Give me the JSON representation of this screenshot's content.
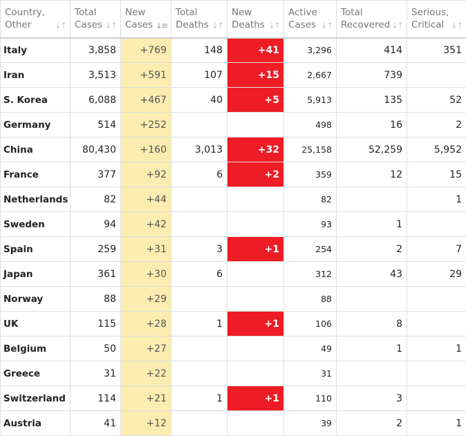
{
  "headers": [
    {
      "label": "Country,\nOther",
      "sort_icon": "sort-icon"
    },
    {
      "label": "Total\nCases",
      "sort_icon": "sort-icon"
    },
    {
      "label": "New\nCases",
      "sort_icon": "sort-descending-icon"
    },
    {
      "label": "Total\nDeaths",
      "sort_icon": "sort-icon"
    },
    {
      "label": "New\nDeaths",
      "sort_icon": "sort-icon"
    },
    {
      "label": "Active\nCases",
      "sort_icon": "sort-icon"
    },
    {
      "label": "Total\nRecovered",
      "sort_icon": "sort-icon"
    },
    {
      "label": "Serious,\nCritical",
      "sort_icon": "sort-icon"
    }
  ],
  "rows": [
    {
      "country": "Italy",
      "total_cases": "3,858",
      "new_cases": "+769",
      "total_deaths": "148",
      "new_deaths": "+41",
      "active_cases": "3,296",
      "total_recovered": "414",
      "serious_critical": "351"
    },
    {
      "country": "Iran",
      "total_cases": "3,513",
      "new_cases": "+591",
      "total_deaths": "107",
      "new_deaths": "+15",
      "active_cases": "2,667",
      "total_recovered": "739",
      "serious_critical": ""
    },
    {
      "country": "S. Korea",
      "total_cases": "6,088",
      "new_cases": "+467",
      "total_deaths": "40",
      "new_deaths": "+5",
      "active_cases": "5,913",
      "total_recovered": "135",
      "serious_critical": "52"
    },
    {
      "country": "Germany",
      "total_cases": "514",
      "new_cases": "+252",
      "total_deaths": "",
      "new_deaths": "",
      "active_cases": "498",
      "total_recovered": "16",
      "serious_critical": "2"
    },
    {
      "country": "China",
      "total_cases": "80,430",
      "new_cases": "+160",
      "total_deaths": "3,013",
      "new_deaths": "+32",
      "active_cases": "25,158",
      "total_recovered": "52,259",
      "serious_critical": "5,952"
    },
    {
      "country": "France",
      "total_cases": "377",
      "new_cases": "+92",
      "total_deaths": "6",
      "new_deaths": "+2",
      "active_cases": "359",
      "total_recovered": "12",
      "serious_critical": "15"
    },
    {
      "country": "Netherlands",
      "total_cases": "82",
      "new_cases": "+44",
      "total_deaths": "",
      "new_deaths": "",
      "active_cases": "82",
      "total_recovered": "",
      "serious_critical": "1"
    },
    {
      "country": "Sweden",
      "total_cases": "94",
      "new_cases": "+42",
      "total_deaths": "",
      "new_deaths": "",
      "active_cases": "93",
      "total_recovered": "1",
      "serious_critical": ""
    },
    {
      "country": "Spain",
      "total_cases": "259",
      "new_cases": "+31",
      "total_deaths": "3",
      "new_deaths": "+1",
      "active_cases": "254",
      "total_recovered": "2",
      "serious_critical": "7"
    },
    {
      "country": "Japan",
      "total_cases": "361",
      "new_cases": "+30",
      "total_deaths": "6",
      "new_deaths": "",
      "active_cases": "312",
      "total_recovered": "43",
      "serious_critical": "29"
    },
    {
      "country": "Norway",
      "total_cases": "88",
      "new_cases": "+29",
      "total_deaths": "",
      "new_deaths": "",
      "active_cases": "88",
      "total_recovered": "",
      "serious_critical": ""
    },
    {
      "country": "UK",
      "total_cases": "115",
      "new_cases": "+28",
      "total_deaths": "1",
      "new_deaths": "+1",
      "active_cases": "106",
      "total_recovered": "8",
      "serious_critical": ""
    },
    {
      "country": "Belgium",
      "total_cases": "50",
      "new_cases": "+27",
      "total_deaths": "",
      "new_deaths": "",
      "active_cases": "49",
      "total_recovered": "1",
      "serious_critical": "1"
    },
    {
      "country": "Greece",
      "total_cases": "31",
      "new_cases": "+22",
      "total_deaths": "",
      "new_deaths": "",
      "active_cases": "31",
      "total_recovered": "",
      "serious_critical": ""
    },
    {
      "country": "Switzerland",
      "total_cases": "114",
      "new_cases": "+21",
      "total_deaths": "1",
      "new_deaths": "+1",
      "active_cases": "110",
      "total_recovered": "3",
      "serious_critical": ""
    },
    {
      "country": "Austria",
      "total_cases": "41",
      "new_cases": "+12",
      "total_deaths": "",
      "new_deaths": "",
      "active_cases": "39",
      "total_recovered": "2",
      "serious_critical": "1"
    }
  ],
  "colors": {
    "new_cases_highlight": "#fbedb0",
    "new_deaths_highlight": "#ee1c25",
    "grid_line": "#dedede",
    "header_text": "#777777"
  }
}
